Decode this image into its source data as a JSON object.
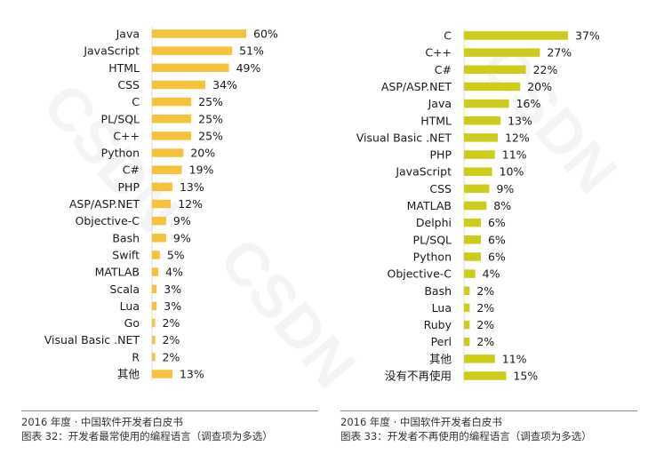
{
  "watermark": {
    "text": "CSDN"
  },
  "colors": {
    "left_bar": "#f5c33b",
    "right_bar": "#cccc1a",
    "caption_rule": "#8a8a8a"
  },
  "captions": {
    "left": {
      "line1": "2016 年度 · 中国软件开发者白皮书",
      "line2": "图表 32：开发者最常使用的编程语言（调查项为多选）"
    },
    "right": {
      "line1": "2016 年度 · 中国软件开发者白皮书",
      "line2": "图表 33：开发者不再使用的编程语言（调查项为多选）"
    }
  },
  "chart_data": [
    {
      "type": "bar",
      "orientation": "horizontal",
      "categories": [
        "Java",
        "JavaScript",
        "HTML",
        "CSS",
        "C",
        "PL/SQL",
        "C++",
        "Python",
        "C#",
        "PHP",
        "ASP/ASP.NET",
        "Objective-C",
        "Bash",
        "Swift",
        "MATLAB",
        "Scala",
        "Lua",
        "Go",
        "Visual Basic .NET",
        "R",
        "其他"
      ],
      "values": [
        60,
        51,
        49,
        34,
        25,
        25,
        25,
        20,
        19,
        13,
        12,
        9,
        9,
        5,
        4,
        3,
        3,
        2,
        2,
        2,
        13
      ],
      "value_labels": [
        "60%",
        "51%",
        "49%",
        "34%",
        "25%",
        "25%",
        "25%",
        "20%",
        "19%",
        "13%",
        "12%",
        "9%",
        "9%",
        "5%",
        "4%",
        "3%",
        "3%",
        "2%",
        "2%",
        "2%",
        "13%"
      ],
      "unit": "%",
      "xlim": [
        0,
        60
      ],
      "grid": false,
      "color": "#f5c33b"
    },
    {
      "type": "bar",
      "orientation": "horizontal",
      "categories": [
        "C",
        "C++",
        "C#",
        "ASP/ASP.NET",
        "Java",
        "HTML",
        "Visual Basic .NET",
        "PHP",
        "JavaScript",
        "CSS",
        "MATLAB",
        "Delphi",
        "PL/SQL",
        "Python",
        "Objective-C",
        "Bash",
        "Lua",
        "Ruby",
        "Perl",
        "其他",
        "没有不再使用"
      ],
      "values": [
        37,
        27,
        22,
        20,
        16,
        13,
        12,
        11,
        10,
        9,
        8,
        6,
        6,
        6,
        4,
        2,
        2,
        2,
        2,
        11,
        15
      ],
      "value_labels": [
        "37%",
        "27%",
        "22%",
        "20%",
        "16%",
        "13%",
        "12%",
        "11%",
        "10%",
        "9%",
        "8%",
        "6%",
        "6%",
        "6%",
        "4%",
        "2%",
        "2%",
        "2%",
        "2%",
        "11%",
        "15%"
      ],
      "unit": "%",
      "xlim": [
        0,
        37
      ],
      "grid": false,
      "color": "#cccc1a"
    }
  ]
}
